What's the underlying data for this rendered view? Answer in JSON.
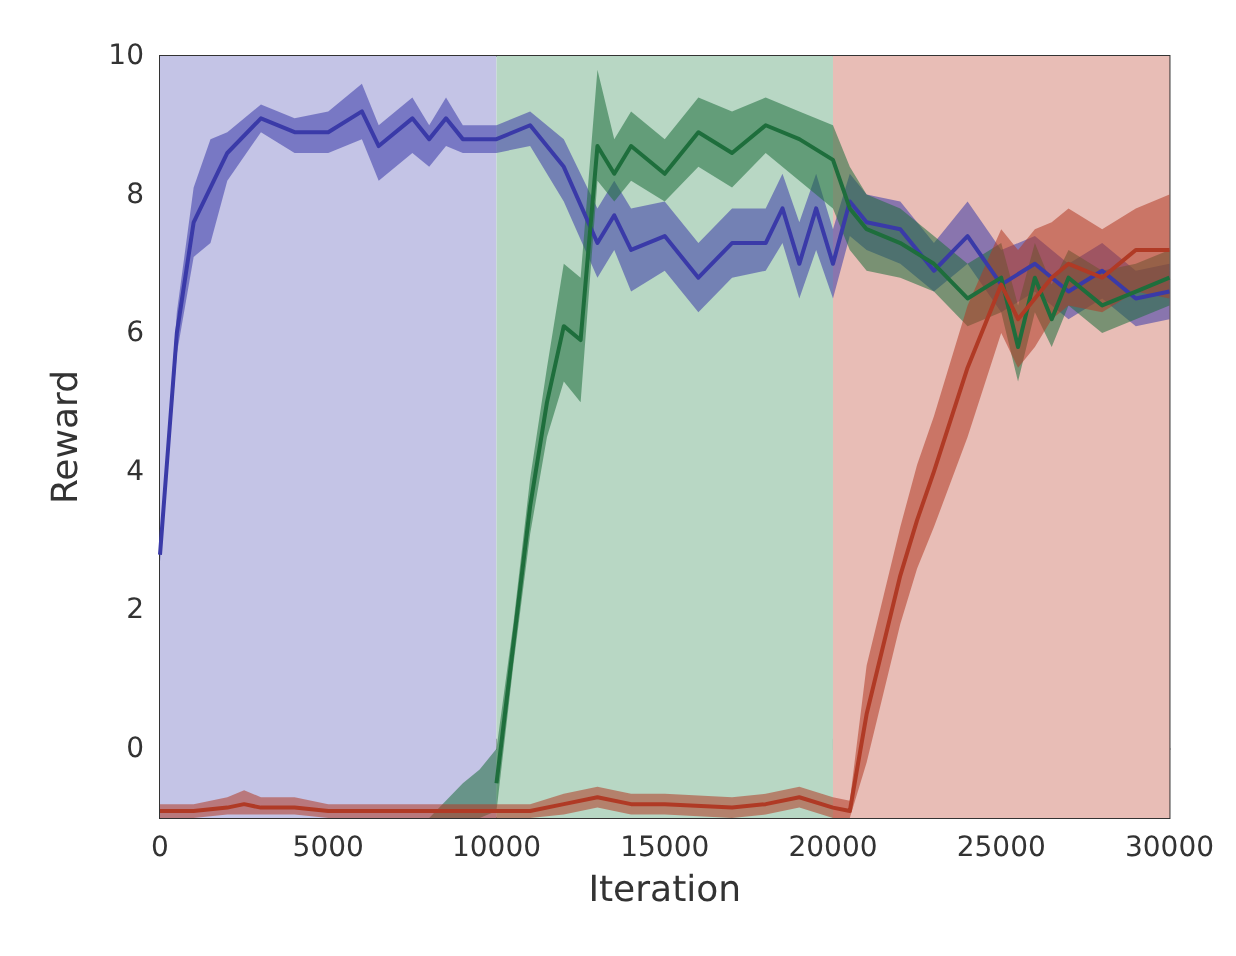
{
  "chart_data": {
    "type": "line",
    "xlabel": "Iteration",
    "ylabel": "Reward",
    "xlim": [
      0,
      30000
    ],
    "xticks": [
      0,
      5000,
      10000,
      15000,
      20000,
      25000,
      30000
    ],
    "ylim": [
      -1,
      10
    ],
    "yticks": [
      0,
      2,
      4,
      6,
      8,
      10
    ],
    "bands": [
      {
        "axis": "x",
        "from": 0,
        "to": 10000,
        "color": "#c4c4e6"
      },
      {
        "axis": "x",
        "from": 10000,
        "to": 20000,
        "color": "#b8d7c4"
      },
      {
        "axis": "x",
        "from": 20000,
        "to": 30000,
        "color": "#e8bdb6"
      }
    ],
    "series": [
      {
        "color": "#3a3aa8",
        "x": [
          0,
          500,
          1000,
          1500,
          2000,
          3000,
          4000,
          5000,
          6000,
          6500,
          7500,
          8000,
          8500,
          9000,
          10000,
          11000,
          12000,
          13000,
          13500,
          14000,
          15000,
          16000,
          17000,
          18000,
          18500,
          19000,
          19500,
          20000,
          20500,
          21000,
          22000,
          23000,
          24000,
          25000,
          26000,
          27000,
          28000,
          29000,
          30000
        ],
        "values": [
          2.8,
          6.0,
          7.6,
          8.1,
          8.6,
          9.1,
          8.9,
          8.9,
          9.2,
          8.7,
          9.1,
          8.8,
          9.1,
          8.8,
          8.8,
          9.0,
          8.4,
          7.3,
          7.7,
          7.2,
          7.4,
          6.8,
          7.3,
          7.3,
          7.8,
          7.0,
          7.8,
          7.0,
          7.9,
          7.6,
          7.5,
          6.9,
          7.4,
          6.7,
          7.0,
          6.6,
          6.9,
          6.5,
          6.6
        ],
        "lower": [
          2.7,
          5.7,
          7.1,
          7.3,
          8.2,
          8.9,
          8.6,
          8.6,
          8.8,
          8.2,
          8.6,
          8.4,
          8.7,
          8.6,
          8.6,
          8.7,
          7.9,
          6.8,
          7.2,
          6.6,
          6.9,
          6.3,
          6.8,
          6.9,
          7.3,
          6.5,
          7.2,
          6.5,
          7.4,
          7.2,
          7.0,
          6.6,
          7.0,
          6.3,
          6.6,
          6.2,
          6.5,
          6.1,
          6.2
        ],
        "upper": [
          2.9,
          6.3,
          8.1,
          8.8,
          8.9,
          9.3,
          9.1,
          9.2,
          9.6,
          9.0,
          9.4,
          9.0,
          9.4,
          9.0,
          9.0,
          9.2,
          8.8,
          7.8,
          8.2,
          7.8,
          7.9,
          7.3,
          7.8,
          7.8,
          8.3,
          7.6,
          8.3,
          7.5,
          8.3,
          8.0,
          7.9,
          7.3,
          7.9,
          7.2,
          7.4,
          7.0,
          7.3,
          6.9,
          7.0
        ]
      },
      {
        "color": "#1e6e3c",
        "x": [
          8000,
          9000,
          9500,
          10000,
          10500,
          11000,
          11500,
          12000,
          12500,
          13000,
          13500,
          14000,
          15000,
          16000,
          17000,
          18000,
          19000,
          20000,
          20500,
          21000,
          22000,
          23000,
          24000,
          25000,
          25500,
          26000,
          26500,
          27000,
          28000,
          29000,
          30000
        ],
        "values": [
          null,
          null,
          null,
          -0.5,
          1.5,
          3.5,
          5.0,
          6.1,
          5.9,
          8.7,
          8.3,
          8.7,
          8.3,
          8.9,
          8.6,
          9.0,
          8.8,
          8.5,
          7.8,
          7.5,
          7.3,
          7.0,
          6.5,
          6.8,
          5.8,
          6.8,
          6.2,
          6.8,
          6.4,
          6.6,
          6.8
        ],
        "lower": [
          -1,
          -1,
          -1,
          -0.9,
          1.2,
          3.1,
          4.5,
          5.3,
          5.0,
          8.2,
          7.9,
          8.2,
          7.9,
          8.4,
          8.1,
          8.6,
          8.2,
          7.8,
          7.2,
          6.9,
          6.8,
          6.6,
          6.1,
          6.3,
          5.3,
          6.3,
          5.8,
          6.4,
          6.0,
          6.2,
          6.4
        ],
        "upper": [
          -1,
          -0.5,
          -0.3,
          0,
          1.8,
          3.9,
          5.5,
          7.0,
          6.8,
          9.8,
          8.8,
          9.2,
          8.8,
          9.4,
          9.2,
          9.4,
          9.2,
          9.0,
          8.4,
          8.0,
          7.8,
          7.4,
          7.0,
          7.3,
          6.4,
          7.3,
          6.7,
          7.2,
          6.9,
          7.0,
          7.2
        ]
      },
      {
        "color": "#b03a25",
        "x": [
          0,
          1000,
          2000,
          2500,
          3000,
          4000,
          5000,
          7000,
          9000,
          11000,
          12000,
          13000,
          14000,
          15000,
          17000,
          18000,
          19000,
          20000,
          20500,
          21000,
          21500,
          22000,
          22500,
          23000,
          24000,
          25000,
          25500,
          26000,
          26500,
          27000,
          28000,
          29000,
          30000
        ],
        "values": [
          -0.9,
          -0.9,
          -0.85,
          -0.8,
          -0.85,
          -0.85,
          -0.9,
          -0.9,
          -0.9,
          -0.9,
          -0.8,
          -0.7,
          -0.8,
          -0.8,
          -0.85,
          -0.8,
          -0.7,
          -0.85,
          -0.9,
          0.5,
          1.5,
          2.5,
          3.3,
          4.0,
          5.5,
          6.7,
          6.2,
          6.5,
          6.8,
          7.0,
          6.8,
          7.2,
          7.2
        ],
        "lower": [
          -1,
          -1,
          -0.95,
          -0.95,
          -0.95,
          -0.95,
          -1,
          -1,
          -1,
          -1,
          -0.95,
          -0.85,
          -0.95,
          -0.95,
          -1,
          -0.95,
          -0.85,
          -1,
          -1,
          -0.2,
          0.8,
          1.8,
          2.6,
          3.2,
          4.5,
          6.0,
          5.5,
          5.8,
          6.2,
          6.4,
          6.3,
          6.6,
          6.5
        ],
        "upper": [
          -0.8,
          -0.8,
          -0.7,
          -0.6,
          -0.7,
          -0.7,
          -0.8,
          -0.8,
          -0.8,
          -0.8,
          -0.65,
          -0.55,
          -0.65,
          -0.65,
          -0.7,
          -0.65,
          -0.55,
          -0.7,
          -0.75,
          1.2,
          2.2,
          3.2,
          4.1,
          4.8,
          6.4,
          7.5,
          7.2,
          7.5,
          7.6,
          7.8,
          7.5,
          7.8,
          8.0
        ]
      }
    ]
  }
}
